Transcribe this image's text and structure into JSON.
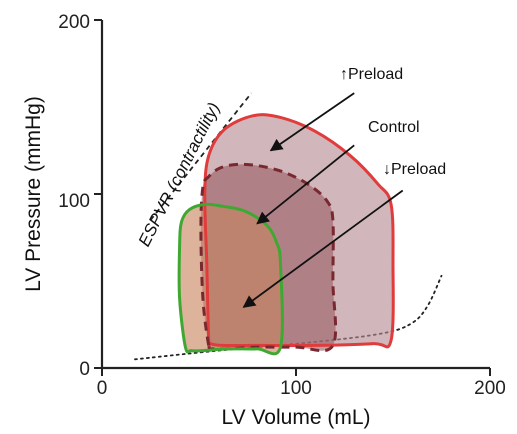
{
  "chart_data": {
    "type": "line",
    "title": "",
    "xlabel": "LV Volume (mL)",
    "ylabel": "LV Pressure (mmHg)",
    "xlim": [
      0,
      200
    ],
    "ylim": [
      0,
      200
    ],
    "xticks": [
      "0",
      "100",
      "200"
    ],
    "yticks": [
      "0",
      "100",
      "200"
    ],
    "grid": false,
    "loops": [
      {
        "label": "↑Preload",
        "color": "#e03c3c",
        "fill": "#b48a92",
        "style": "solid",
        "points": [
          [
            55,
            16
          ],
          [
            54,
            60
          ],
          [
            53,
            100
          ],
          [
            55,
            122
          ],
          [
            63,
            137
          ],
          [
            78,
            145
          ],
          [
            92,
            144
          ],
          [
            110,
            136
          ],
          [
            128,
            122
          ],
          [
            142,
            106
          ],
          [
            149,
            94
          ],
          [
            150,
            60
          ],
          [
            149,
            16
          ],
          [
            140,
            14
          ],
          [
            110,
            13
          ],
          [
            80,
            13
          ],
          [
            62,
            13
          ],
          [
            56,
            14
          ]
        ]
      },
      {
        "label": "Control",
        "color": "#7a2830",
        "fill": "#9a6068",
        "style": "dashed",
        "points": [
          [
            55,
            13
          ],
          [
            52,
            40
          ],
          [
            51,
            80
          ],
          [
            52,
            104
          ],
          [
            55,
            110
          ],
          [
            61,
            115
          ],
          [
            70,
            117
          ],
          [
            82,
            116
          ],
          [
            95,
            112
          ],
          [
            107,
            105
          ],
          [
            116,
            96
          ],
          [
            119,
            85
          ],
          [
            119,
            50
          ],
          [
            119,
            13
          ],
          [
            100,
            12
          ],
          [
            80,
            12
          ],
          [
            64,
            11
          ],
          [
            57,
            11
          ]
        ]
      },
      {
        "label": "↓Preload",
        "color": "#3fa832",
        "fill": "#c8855f",
        "style": "solid",
        "points": [
          [
            43,
            12
          ],
          [
            40,
            40
          ],
          [
            40,
            70
          ],
          [
            41,
            84
          ],
          [
            45,
            91
          ],
          [
            53,
            94
          ],
          [
            62,
            93
          ],
          [
            74,
            90
          ],
          [
            85,
            82
          ],
          [
            90,
            72
          ],
          [
            92,
            60
          ],
          [
            92,
            12
          ],
          [
            80,
            11
          ],
          [
            65,
            11
          ],
          [
            52,
            10
          ],
          [
            46,
            10
          ]
        ]
      }
    ],
    "espvr": {
      "label": "ESPVR (contractility)",
      "points": [
        [
          25,
          85
        ],
        [
          77,
          158
        ]
      ],
      "style": "dashed"
    },
    "edpvr": {
      "style": "dotted",
      "points": [
        [
          17,
          5
        ],
        [
          60,
          10
        ],
        [
          110,
          15
        ],
        [
          145,
          20
        ],
        [
          160,
          26
        ],
        [
          168,
          36
        ],
        [
          175,
          53
        ]
      ]
    },
    "annotations": [
      {
        "text": "↑Preload",
        "from": [
          130,
          158
        ],
        "to": [
          87,
          125
        ]
      },
      {
        "text": "Control",
        "from": [
          130,
          128
        ],
        "to": [
          80,
          83
        ]
      },
      {
        "text": "↓Preload",
        "from": [
          155,
          102
        ],
        "to": [
          73,
          35
        ]
      }
    ]
  }
}
